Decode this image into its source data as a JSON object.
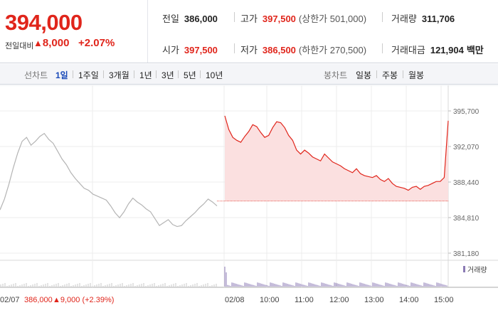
{
  "summary": {
    "price": "394,000",
    "change_label": "전일대비",
    "change_amount": "8,000",
    "change_percent": "+2.07%",
    "up_symbol": "▲",
    "prev_close_label": "전일",
    "prev_close": "386,000",
    "open_label": "시가",
    "open": "397,500",
    "high_label": "고가",
    "high": "397,500",
    "upper_limit": "(상한가 501,000)",
    "low_label": "저가",
    "low": "386,500",
    "lower_limit": "(하한가 270,500)",
    "volume_label": "거래량",
    "volume": "311,706",
    "value_label": "거래대금",
    "value": "121,904",
    "value_unit": "백만"
  },
  "toolbar": {
    "line_chart_label": "선차트",
    "periods": [
      "1일",
      "1주일",
      "3개월",
      "1년",
      "3년",
      "5년",
      "10년"
    ],
    "active_period": "1일",
    "candle_chart_label": "봉차트",
    "candle_periods": [
      "일봉",
      "주봉",
      "월봉"
    ]
  },
  "chart_data": {
    "type": "line",
    "y_ticks": [
      "395,700",
      "392,070",
      "388,440",
      "384,810",
      "381,180"
    ],
    "y_tick_values": [
      395700,
      392070,
      388440,
      384810,
      381180
    ],
    "ylim": [
      381180,
      395700
    ],
    "x_ticks": [
      "02/08",
      "10:00",
      "11:00",
      "12:00",
      "13:00",
      "14:00",
      "15:00"
    ],
    "prev_day_label": "02/07",
    "prev_day_close": "386,000",
    "prev_day_change": "▲9,000 (+2.39%)",
    "volume_legend": "거래량",
    "reference_price": 386500,
    "series": [
      {
        "values": [
          385600,
          386700,
          388200,
          389900,
          391400,
          392600,
          393000,
          392200,
          392600,
          393100,
          393400,
          392800,
          392400,
          391600,
          390800,
          390200,
          389400,
          388800,
          388300,
          387800,
          387600,
          387200,
          387000,
          386800,
          386600,
          386000,
          385300,
          384800,
          385400,
          386200,
          386800,
          386400,
          386100,
          385700,
          385400,
          384700,
          384000,
          384300,
          384600,
          384100,
          383900,
          384000,
          384500,
          384900,
          385300,
          385800,
          386200,
          386700,
          386400,
          386000
        ]
      },
      {
        "values": [
          395200,
          393800,
          393000,
          392700,
          392500,
          393100,
          393600,
          394300,
          394100,
          393500,
          393000,
          393200,
          394000,
          394600,
          394500,
          394000,
          393200,
          392700,
          391700,
          391300,
          391700,
          391400,
          391000,
          390800,
          390600,
          391300,
          390900,
          390500,
          390300,
          390100,
          389800,
          389600,
          389400,
          389800,
          389300,
          389100,
          389000,
          388900,
          389100,
          388700,
          388500,
          388800,
          388300,
          388000,
          387900,
          387800,
          387600,
          387900,
          388000,
          387700,
          388000,
          388100,
          388300,
          388500,
          388500,
          388900,
          394700
        ]
      }
    ]
  },
  "colors": {
    "up": "#e0251b",
    "down": "#1a5fd1",
    "prev_line": "#b4b4b4",
    "today_line": "#e0251b",
    "fill": "#fbe0e0",
    "volume": "#8b7ab4",
    "grid": "#ececec"
  }
}
